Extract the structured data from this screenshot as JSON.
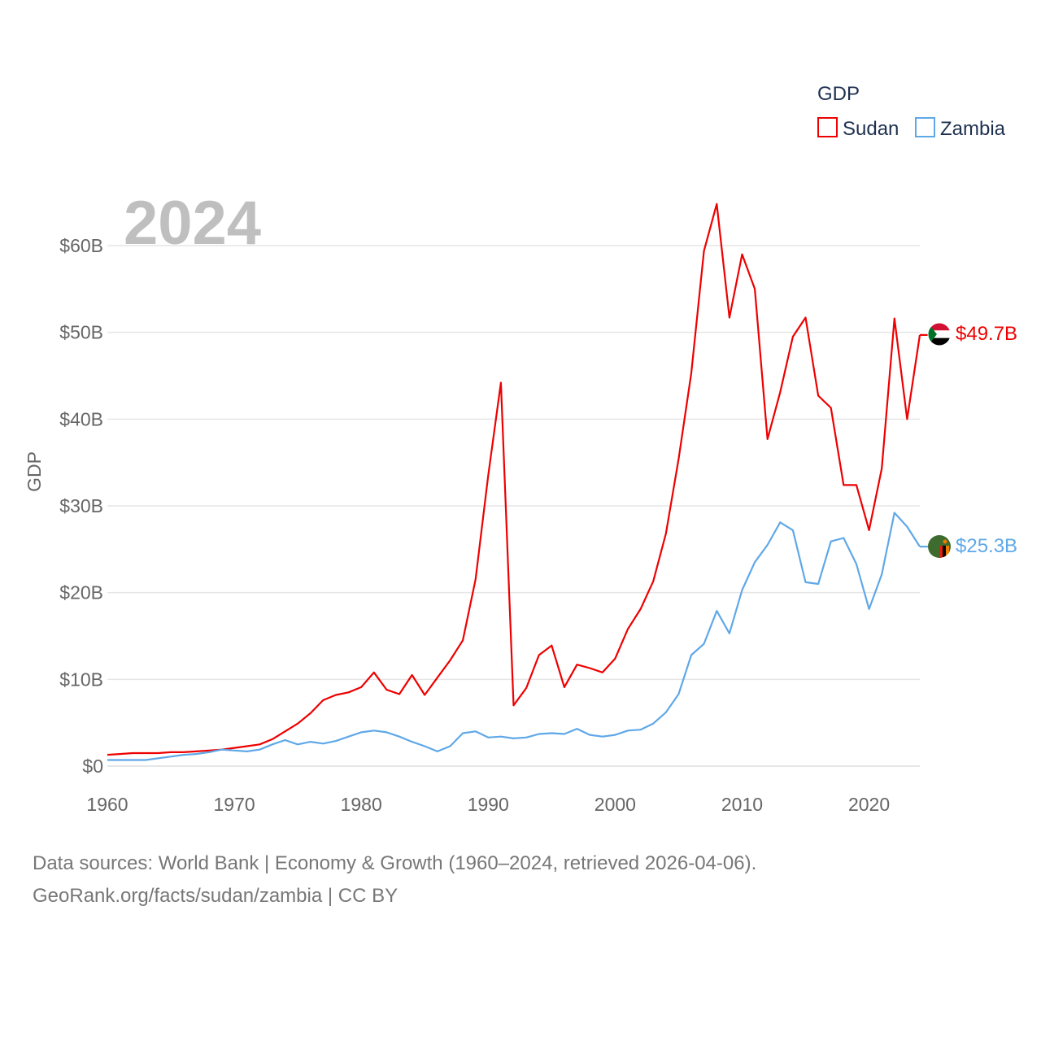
{
  "colors": {
    "sudan": "#ee0000",
    "zambia": "#5fa8e8",
    "grid": "#e6e6e6",
    "tick": "#666666",
    "year": "#bfbfbf"
  },
  "year_label": "2024",
  "legend": {
    "title": "GDP",
    "items": [
      {
        "label": "Sudan"
      },
      {
        "label": "Zambia"
      }
    ]
  },
  "end_labels": {
    "sudan": "$49.7B",
    "zambia": "$25.3B"
  },
  "footer": {
    "line1": "Data sources: World Bank | Economy & Growth (1960–2024, retrieved 2026-04-06).",
    "line2": "GeoRank.org/facts/sudan/zambia | CC BY"
  },
  "chart_data": {
    "type": "line",
    "title": "",
    "xlabel": "",
    "ylabel": "GDP",
    "xlim": [
      1960,
      2024
    ],
    "ylim": [
      0,
      60
    ],
    "x_ticks": [
      1960,
      1970,
      1980,
      1990,
      2000,
      2010,
      2020
    ],
    "y_ticks": [
      {
        "value": 0,
        "label": "$0"
      },
      {
        "value": 10,
        "label": "$10B"
      },
      {
        "value": 20,
        "label": "$20B"
      },
      {
        "value": 30,
        "label": "$30B"
      },
      {
        "value": 40,
        "label": "$40B"
      },
      {
        "value": 50,
        "label": "$50B"
      },
      {
        "value": 60,
        "label": "$60B"
      }
    ],
    "units": "billions USD",
    "x": [
      1960,
      1961,
      1962,
      1963,
      1964,
      1965,
      1966,
      1967,
      1968,
      1969,
      1970,
      1971,
      1972,
      1973,
      1974,
      1975,
      1976,
      1977,
      1978,
      1979,
      1980,
      1981,
      1982,
      1983,
      1984,
      1985,
      1986,
      1987,
      1988,
      1989,
      1990,
      1991,
      1992,
      1993,
      1994,
      1995,
      1996,
      1997,
      1998,
      1999,
      2000,
      2001,
      2002,
      2003,
      2004,
      2005,
      2006,
      2007,
      2008,
      2009,
      2010,
      2011,
      2012,
      2013,
      2014,
      2015,
      2016,
      2017,
      2018,
      2019,
      2020,
      2021,
      2022,
      2023,
      2024
    ],
    "series": [
      {
        "name": "Sudan",
        "values": [
          1.3,
          1.4,
          1.5,
          1.5,
          1.5,
          1.6,
          1.6,
          1.7,
          1.8,
          1.9,
          2.1,
          2.3,
          2.5,
          3.1,
          4.0,
          4.9,
          6.1,
          7.6,
          8.2,
          8.5,
          9.1,
          10.8,
          8.8,
          8.3,
          10.5,
          8.2,
          10.2,
          12.2,
          14.5,
          21.5,
          33.5,
          44.2,
          7.0,
          9.0,
          12.8,
          13.9,
          9.1,
          11.7,
          11.3,
          10.8,
          12.4,
          15.8,
          18.1,
          21.3,
          26.8,
          35.4,
          45.3,
          59.4,
          64.8,
          51.7,
          59.0,
          55.0,
          37.7,
          43.1,
          49.5,
          51.7,
          42.7,
          41.3,
          32.4,
          32.4,
          27.2,
          34.3,
          51.6,
          40.0,
          49.7
        ]
      },
      {
        "name": "Zambia",
        "values": [
          0.7,
          0.7,
          0.7,
          0.7,
          0.9,
          1.1,
          1.3,
          1.4,
          1.6,
          1.9,
          1.8,
          1.7,
          1.9,
          2.5,
          3.0,
          2.5,
          2.8,
          2.6,
          2.9,
          3.4,
          3.9,
          4.1,
          3.9,
          3.4,
          2.8,
          2.3,
          1.7,
          2.3,
          3.8,
          4.0,
          3.3,
          3.4,
          3.2,
          3.3,
          3.7,
          3.8,
          3.7,
          4.3,
          3.6,
          3.4,
          3.6,
          4.1,
          4.2,
          4.9,
          6.2,
          8.3,
          12.8,
          14.1,
          17.9,
          15.3,
          20.3,
          23.5,
          25.5,
          28.1,
          27.2,
          21.2,
          21.0,
          25.9,
          26.3,
          23.3,
          18.1,
          22.1,
          29.2,
          27.6,
          25.3
        ]
      }
    ]
  }
}
